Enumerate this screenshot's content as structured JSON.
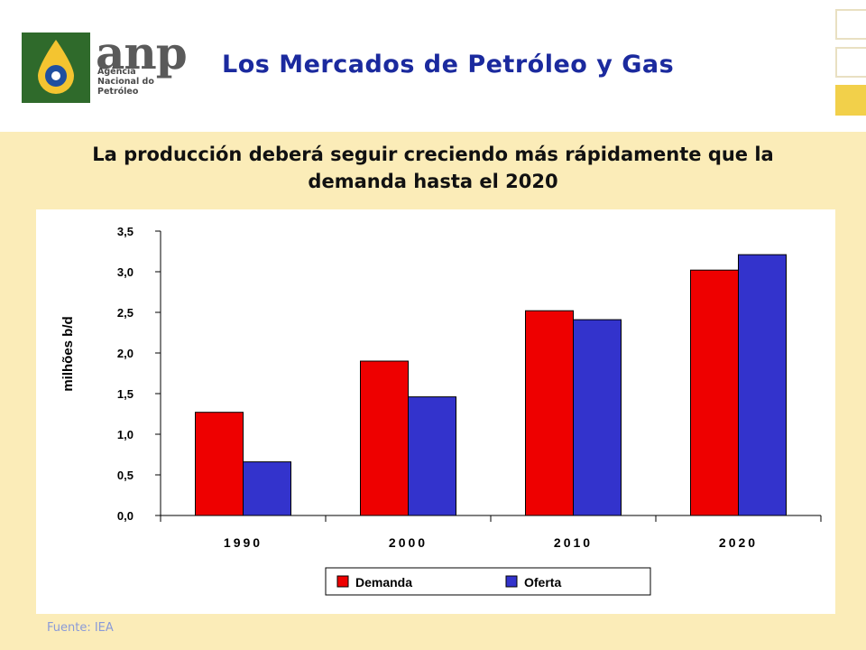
{
  "header": {
    "logo": {
      "word": "anp",
      "sub_lines": [
        "Agência",
        "Nacional do",
        "Petróleo"
      ]
    },
    "title": "Los Mercados de Petróleo y Gas"
  },
  "subtitle": {
    "line1": "La producción deberá seguir creciendo más rápidamente que la",
    "line2": "demanda hasta el 2020"
  },
  "source": "Fuente: IEA",
  "colors": {
    "demanda": "#ee0000",
    "oferta": "#3333cc",
    "title": "#1b2a9e"
  },
  "chart_data": {
    "type": "bar",
    "categories": [
      "1990",
      "2000",
      "2010",
      "2020"
    ],
    "series": [
      {
        "name": "Demanda",
        "values": [
          1.27,
          1.9,
          2.52,
          3.02
        ]
      },
      {
        "name": "Oferta",
        "values": [
          0.66,
          1.46,
          2.41,
          3.21
        ]
      }
    ],
    "ylabel": "milhões b/d",
    "ylim": [
      0,
      3.5
    ],
    "yticks": [
      0,
      0.5,
      1,
      1.5,
      2,
      2.5,
      3,
      3.5
    ],
    "ytick_labels": [
      "0,0",
      "0,5",
      "1,0",
      "1,5",
      "2,0",
      "2,5",
      "3,0",
      "3,5"
    ],
    "legend_position": "bottom-center",
    "grid": false
  }
}
